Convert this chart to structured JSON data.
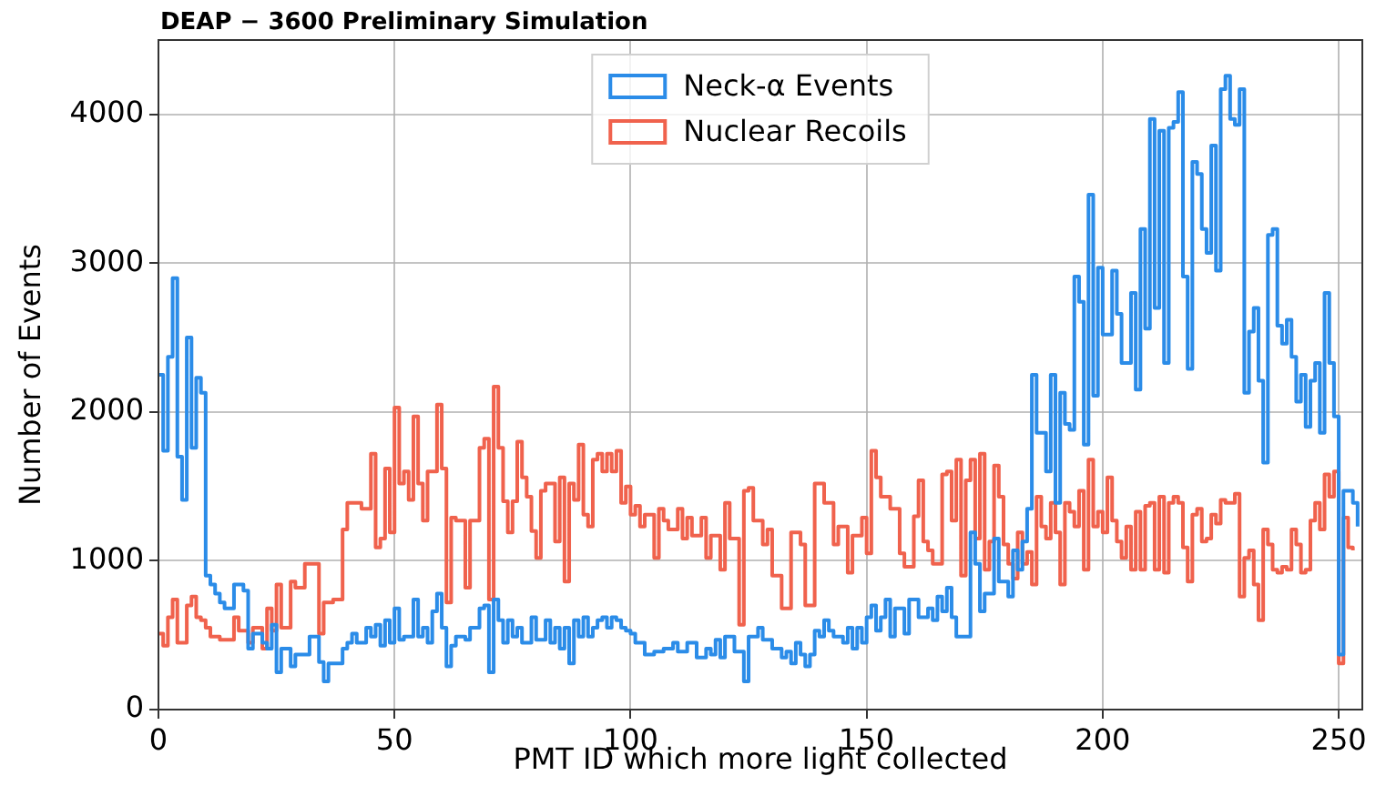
{
  "chart_data": {
    "type": "step",
    "title": "DEAP − 3600 Preliminary Simulation",
    "xlabel": "PMT ID which more light collected",
    "ylabel": "Number of Events",
    "xlim": [
      0,
      255
    ],
    "xticks": [
      0,
      50,
      100,
      150,
      200,
      250
    ],
    "ylim": [
      0,
      4500
    ],
    "yticks": [
      0,
      1000,
      2000,
      3000,
      4000
    ],
    "grid": true,
    "legend": "top",
    "series": [
      {
        "name": "Neck-α Events",
        "color": "#2b8ce8",
        "x": [
          0,
          1,
          2,
          3,
          4,
          5,
          6,
          7,
          8,
          9,
          10,
          11,
          12,
          13,
          14,
          16,
          18,
          19,
          20,
          22,
          23,
          24,
          25,
          26,
          28,
          29,
          32,
          34,
          35,
          36,
          39,
          40,
          41,
          42,
          44,
          45,
          46,
          47,
          48,
          49,
          50,
          51,
          52,
          54,
          55,
          56,
          57,
          58,
          59,
          60,
          61,
          62,
          63,
          65,
          66,
          68,
          69,
          70,
          71,
          72,
          73,
          74,
          75,
          76,
          77,
          79,
          80,
          82,
          83,
          84,
          85,
          86,
          87,
          88,
          89,
          90,
          91,
          92,
          93,
          94,
          95,
          96,
          97,
          98,
          99,
          100,
          101,
          103,
          105,
          107,
          109,
          110,
          112,
          114,
          116,
          117,
          118,
          119,
          120,
          122,
          124,
          125,
          126,
          127,
          128,
          130,
          132,
          133,
          134,
          135,
          136,
          137,
          138,
          139,
          140,
          141,
          142,
          143,
          145,
          146,
          147,
          148,
          149,
          150,
          151,
          152,
          153,
          154,
          155,
          156,
          158,
          159,
          161,
          163,
          164,
          165,
          166,
          167,
          168,
          169,
          172,
          173,
          174,
          175,
          177,
          178,
          180,
          181,
          182,
          183,
          184,
          185,
          186,
          188,
          189,
          190,
          191,
          192,
          193,
          194,
          195,
          196,
          197,
          198,
          199,
          200,
          202,
          203,
          204,
          206,
          207,
          208,
          209,
          210,
          211,
          212,
          213,
          214,
          215,
          216,
          217,
          218,
          219,
          220,
          221,
          222,
          223,
          224,
          225,
          226,
          227,
          228,
          229,
          230,
          231,
          232,
          233,
          234,
          235,
          236,
          237,
          238,
          239,
          240,
          241,
          242,
          243,
          244,
          245,
          246,
          247,
          248,
          249,
          250,
          251,
          253,
          254
        ],
        "values": [
          2250,
          1740,
          2370,
          2900,
          1700,
          1410,
          2500,
          1760,
          2230,
          2130,
          900,
          840,
          780,
          720,
          680,
          840,
          800,
          410,
          510,
          450,
          410,
          570,
          250,
          410,
          290,
          370,
          490,
          320,
          190,
          310,
          410,
          450,
          510,
          450,
          550,
          490,
          570,
          430,
          600,
          450,
          680,
          470,
          490,
          740,
          490,
          550,
          450,
          660,
          780,
          550,
          290,
          430,
          490,
          470,
          550,
          680,
          700,
          250,
          740,
          600,
          450,
          600,
          490,
          550,
          450,
          620,
          470,
          600,
          450,
          550,
          410,
          550,
          310,
          600,
          490,
          620,
          490,
          550,
          600,
          620,
          550,
          620,
          600,
          550,
          530,
          510,
          450,
          370,
          390,
          410,
          450,
          390,
          450,
          350,
          410,
          370,
          470,
          350,
          490,
          390,
          190,
          490,
          490,
          550,
          470,
          410,
          350,
          390,
          310,
          450,
          370,
          290,
          370,
          530,
          490,
          600,
          530,
          490,
          450,
          550,
          410,
          550,
          450,
          620,
          700,
          530,
          620,
          740,
          490,
          680,
          510,
          740,
          620,
          680,
          600,
          760,
          660,
          820,
          620,
          490,
          1190,
          980,
          660,
          780,
          1150,
          860,
          760,
          1070,
          940,
          1130,
          1350,
          2250,
          1860,
          1600,
          2250,
          1390,
          2130,
          1920,
          1880,
          2910,
          2740,
          1780,
          3460,
          2110,
          2970,
          2520,
          2950,
          2660,
          2330,
          2800,
          2150,
          3230,
          2560,
          3970,
          2700,
          3890,
          2330,
          3910,
          3950,
          4150,
          2910,
          2290,
          3680,
          3600,
          3230,
          3070,
          3790,
          2950,
          4170,
          4260,
          3970,
          3930,
          4170,
          2130,
          2540,
          2700,
          2210,
          1660,
          3190,
          3230,
          2580,
          2460,
          2620,
          2370,
          2070,
          2250,
          1900,
          2210,
          2330,
          1860,
          2800,
          2330,
          1970,
          370,
          1470,
          1390,
          1230
        ]
      },
      {
        "name": "Nuclear Recoils",
        "color": "#f0624d",
        "x": [
          0,
          1,
          2,
          3,
          4,
          6,
          7,
          8,
          9,
          10,
          11,
          13,
          16,
          17,
          19,
          20,
          22,
          23,
          24,
          25,
          26,
          28,
          29,
          31,
          34,
          35,
          37,
          39,
          40,
          43,
          45,
          46,
          47,
          48,
          49,
          50,
          51,
          52,
          53,
          54,
          55,
          56,
          57,
          59,
          60,
          61,
          62,
          63,
          65,
          66,
          68,
          69,
          70,
          71,
          72,
          73,
          74,
          75,
          76,
          77,
          78,
          79,
          80,
          81,
          82,
          84,
          85,
          86,
          87,
          88,
          89,
          90,
          91,
          92,
          93,
          94,
          95,
          96,
          97,
          98,
          99,
          100,
          101,
          102,
          103,
          105,
          106,
          107,
          108,
          110,
          111,
          112,
          113,
          115,
          116,
          117,
          119,
          120,
          121,
          123,
          124,
          125,
          126,
          128,
          129,
          130,
          132,
          134,
          136,
          137,
          139,
          141,
          143,
          144,
          146,
          147,
          149,
          150,
          151,
          152,
          153,
          155,
          157,
          158,
          160,
          161,
          162,
          163,
          164,
          166,
          167,
          168,
          169,
          170,
          171,
          172,
          173,
          174,
          175,
          176,
          177,
          178,
          179,
          180,
          181,
          182,
          183,
          184,
          185,
          186,
          187,
          188,
          189,
          190,
          191,
          192,
          193,
          194,
          195,
          196,
          197,
          198,
          199,
          200,
          201,
          202,
          203,
          204,
          205,
          206,
          207,
          208,
          209,
          210,
          211,
          212,
          213,
          214,
          215,
          216,
          217,
          218,
          219,
          220,
          221,
          222,
          223,
          224,
          225,
          226,
          228,
          229,
          230,
          231,
          232,
          233,
          234,
          235,
          236,
          237,
          238,
          239,
          240,
          241,
          242,
          243,
          244,
          245,
          246,
          247,
          248,
          249,
          250,
          251,
          252,
          253
        ],
        "values": [
          510,
          430,
          620,
          740,
          450,
          700,
          760,
          620,
          600,
          550,
          490,
          470,
          620,
          530,
          450,
          550,
          410,
          680,
          530,
          840,
          550,
          860,
          820,
          980,
          510,
          720,
          740,
          1210,
          1390,
          1350,
          1720,
          1090,
          1150,
          1620,
          1190,
          2030,
          1520,
          1600,
          1410,
          1970,
          1520,
          1270,
          1600,
          2050,
          1620,
          720,
          1290,
          1270,
          820,
          1270,
          1760,
          1820,
          740,
          2170,
          1760,
          1400,
          1190,
          1400,
          1800,
          1560,
          1430,
          1200,
          1020,
          1470,
          1520,
          1130,
          1560,
          860,
          1520,
          1410,
          1780,
          1310,
          1230,
          1680,
          1720,
          1600,
          1720,
          1600,
          1740,
          1390,
          1500,
          1310,
          1370,
          1230,
          1310,
          1020,
          1350,
          1270,
          1210,
          1350,
          1150,
          1290,
          1170,
          1290,
          1020,
          1170,
          940,
          1390,
          1150,
          570,
          1470,
          1490,
          1270,
          1110,
          1210,
          900,
          680,
          1190,
          1110,
          700,
          1520,
          1390,
          1110,
          1230,
          920,
          1170,
          1290,
          1050,
          1740,
          1560,
          1430,
          1350,
          1050,
          960,
          1300,
          1540,
          1130,
          1070,
          980,
          1580,
          1600,
          1270,
          1680,
          900,
          1540,
          1680,
          1150,
          1720,
          940,
          1130,
          1640,
          1430,
          1110,
          980,
          880,
          1190,
          980,
          1060,
          840,
          1430,
          1230,
          1150,
          1390,
          1190,
          840,
          1390,
          1330,
          1230,
          1470,
          940,
          1680,
          1230,
          1330,
          1190,
          1560,
          1270,
          1130,
          1020,
          1230,
          940,
          1330,
          940,
          1370,
          1390,
          940,
          1430,
          920,
          1390,
          1430,
          1390,
          1090,
          860,
          1310,
          1350,
          1130,
          1150,
          1310,
          1250,
          1410,
          1390,
          1450,
          760,
          1020,
          1070,
          840,
          600,
          1210,
          1110,
          940,
          920,
          960,
          940,
          1210,
          1110,
          920,
          940,
          1270,
          1390,
          1210,
          1580,
          1430,
          1600,
          310,
          1290,
          1090,
          1070
        ]
      }
    ]
  }
}
